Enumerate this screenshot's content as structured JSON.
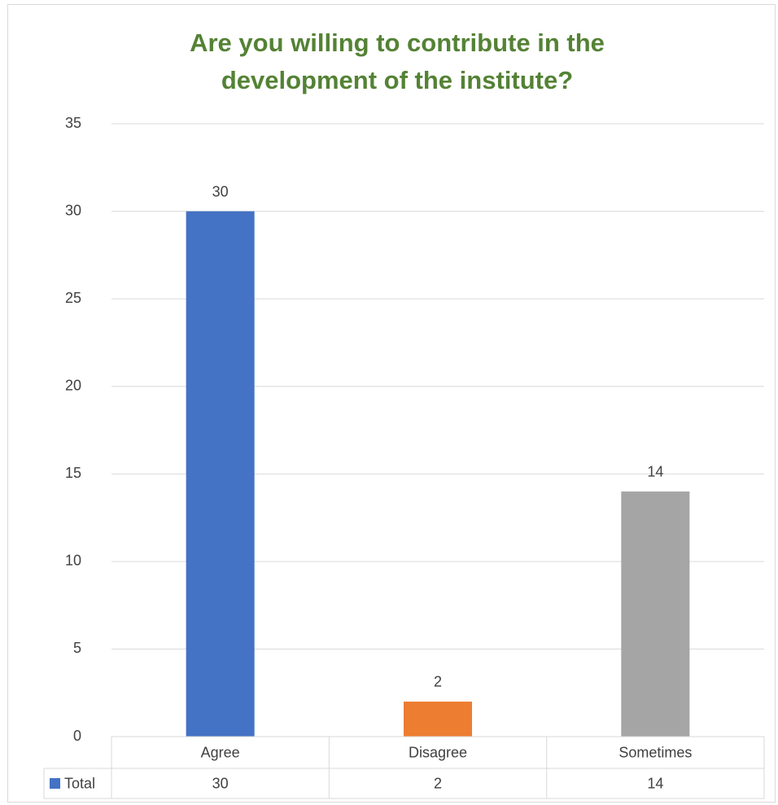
{
  "chart_data": {
    "type": "bar",
    "title_line1": "Are you willing to contribute in the",
    "title_line2": "development of the institute?",
    "categories": [
      "Agree",
      "Disagree",
      "Sometimes"
    ],
    "series": [
      {
        "name": "Total",
        "values": [
          30,
          2,
          14
        ],
        "colors": [
          "#4472c4",
          "#ed7d31",
          "#a5a5a5"
        ]
      }
    ],
    "ylim": [
      0,
      35
    ],
    "yticks": [
      0,
      5,
      10,
      15,
      20,
      25,
      30,
      35
    ],
    "grid": true,
    "data_labels": true,
    "data_table": true,
    "legend": "in data table",
    "xlabel": "",
    "ylabel": ""
  },
  "colors": {
    "title": "#548235",
    "grid": "#d9d9d9",
    "text": "#404040",
    "legend_key": "#4472c4"
  }
}
